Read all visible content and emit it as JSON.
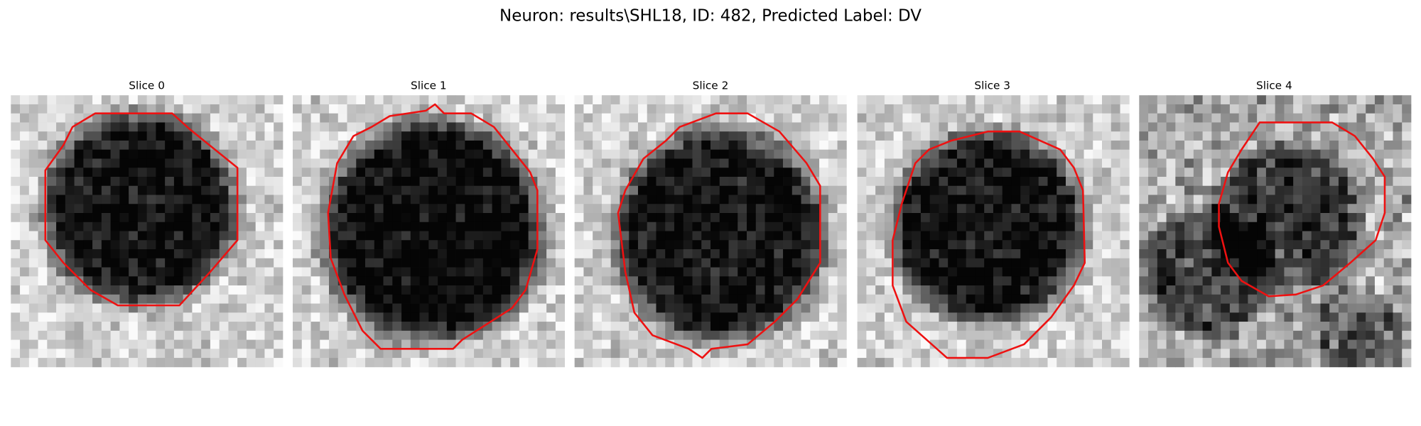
{
  "title": "Neuron: results\\SHL18, ID: 482, Predicted Label: DV",
  "panels": [
    {
      "title": "Slice 0"
    },
    {
      "title": "Slice 1"
    },
    {
      "title": "Slice 2"
    },
    {
      "title": "Slice 3"
    },
    {
      "title": "Slice 4"
    }
  ]
}
